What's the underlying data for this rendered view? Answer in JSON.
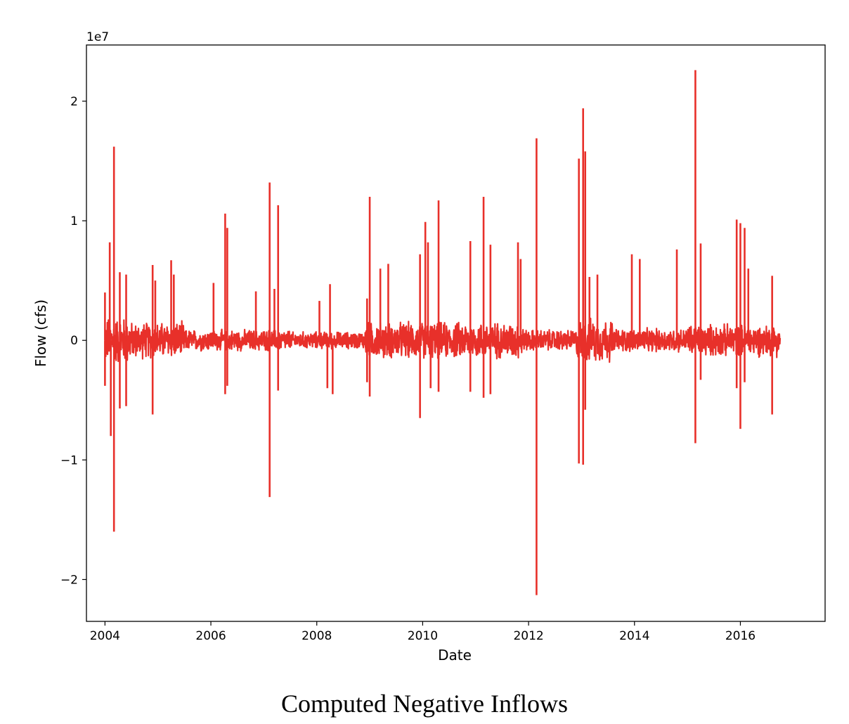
{
  "caption": "Computed Negative Inflows",
  "chart_data": {
    "type": "line",
    "xlabel": "Date",
    "ylabel": "Flow (cfs)",
    "y_scale_label": "1e7",
    "x_ticks": [
      "2004",
      "2006",
      "2008",
      "2010",
      "2012",
      "2014",
      "2016"
    ],
    "x_tick_values": [
      2004,
      2006,
      2008,
      2010,
      2012,
      2014,
      2016
    ],
    "y_ticks": [
      "2",
      "1",
      "0",
      "−1",
      "−2"
    ],
    "y_tick_values": [
      2,
      1,
      0,
      -1,
      -2
    ],
    "xlim": [
      2003.65,
      2017.6
    ],
    "ylim": [
      -2.35,
      2.47
    ],
    "x_range_data": [
      2004.0,
      2016.75
    ],
    "line_color": "#e8302a",
    "grid": false,
    "legend": "none",
    "series": [
      {
        "spikes": [
          {
            "x": 2004.0,
            "y": 0.4
          },
          {
            "x": 2004.0,
            "y": -0.38
          },
          {
            "x": 2004.09,
            "y": 0.82
          },
          {
            "x": 2004.11,
            "y": -0.8
          },
          {
            "x": 2004.17,
            "y": 1.62
          },
          {
            "x": 2004.17,
            "y": -1.6
          },
          {
            "x": 2004.28,
            "y": 0.57
          },
          {
            "x": 2004.28,
            "y": -0.57
          },
          {
            "x": 2004.4,
            "y": 0.55
          },
          {
            "x": 2004.4,
            "y": -0.55
          },
          {
            "x": 2004.9,
            "y": 0.63
          },
          {
            "x": 2004.9,
            "y": -0.62
          },
          {
            "x": 2004.95,
            "y": 0.5
          },
          {
            "x": 2005.25,
            "y": 0.67
          },
          {
            "x": 2005.3,
            "y": 0.55
          },
          {
            "x": 2006.05,
            "y": 0.48
          },
          {
            "x": 2006.27,
            "y": 1.06
          },
          {
            "x": 2006.27,
            "y": -0.45
          },
          {
            "x": 2006.31,
            "y": 0.94
          },
          {
            "x": 2006.31,
            "y": -0.38
          },
          {
            "x": 2006.85,
            "y": 0.41
          },
          {
            "x": 2007.11,
            "y": 1.32
          },
          {
            "x": 2007.11,
            "y": -1.31
          },
          {
            "x": 2007.2,
            "y": 0.43
          },
          {
            "x": 2007.27,
            "y": 1.13
          },
          {
            "x": 2007.27,
            "y": -0.42
          },
          {
            "x": 2008.05,
            "y": 0.33
          },
          {
            "x": 2008.2,
            "y": -0.4
          },
          {
            "x": 2008.25,
            "y": 0.47
          },
          {
            "x": 2008.3,
            "y": -0.45
          },
          {
            "x": 2008.95,
            "y": 0.35
          },
          {
            "x": 2008.95,
            "y": -0.35
          },
          {
            "x": 2009.0,
            "y": 1.2
          },
          {
            "x": 2009.0,
            "y": -0.47
          },
          {
            "x": 2009.2,
            "y": 0.6
          },
          {
            "x": 2009.35,
            "y": 0.64
          },
          {
            "x": 2009.95,
            "y": 0.72
          },
          {
            "x": 2009.95,
            "y": -0.65
          },
          {
            "x": 2010.05,
            "y": 0.99
          },
          {
            "x": 2010.1,
            "y": 0.82
          },
          {
            "x": 2010.15,
            "y": -0.4
          },
          {
            "x": 2010.3,
            "y": 1.17
          },
          {
            "x": 2010.3,
            "y": -0.43
          },
          {
            "x": 2010.9,
            "y": 0.83
          },
          {
            "x": 2010.9,
            "y": -0.43
          },
          {
            "x": 2011.15,
            "y": 1.2
          },
          {
            "x": 2011.15,
            "y": -0.48
          },
          {
            "x": 2011.28,
            "y": 0.8
          },
          {
            "x": 2011.28,
            "y": -0.45
          },
          {
            "x": 2011.8,
            "y": 0.82
          },
          {
            "x": 2011.85,
            "y": 0.68
          },
          {
            "x": 2012.15,
            "y": 1.69
          },
          {
            "x": 2012.15,
            "y": -2.13
          },
          {
            "x": 2012.95,
            "y": 1.52
          },
          {
            "x": 2012.95,
            "y": -1.03
          },
          {
            "x": 2013.03,
            "y": 1.94
          },
          {
            "x": 2013.03,
            "y": -1.04
          },
          {
            "x": 2013.07,
            "y": 1.58
          },
          {
            "x": 2013.07,
            "y": -0.58
          },
          {
            "x": 2013.15,
            "y": 0.53
          },
          {
            "x": 2013.3,
            "y": 0.55
          },
          {
            "x": 2013.95,
            "y": 0.72
          },
          {
            "x": 2014.1,
            "y": 0.68
          },
          {
            "x": 2014.8,
            "y": 0.76
          },
          {
            "x": 2015.15,
            "y": 2.26
          },
          {
            "x": 2015.15,
            "y": -0.86
          },
          {
            "x": 2015.25,
            "y": 0.81
          },
          {
            "x": 2015.25,
            "y": -0.33
          },
          {
            "x": 2015.93,
            "y": 1.01
          },
          {
            "x": 2015.93,
            "y": -0.4
          },
          {
            "x": 2016.0,
            "y": 0.98
          },
          {
            "x": 2016.0,
            "y": -0.74
          },
          {
            "x": 2016.08,
            "y": 0.94
          },
          {
            "x": 2016.08,
            "y": -0.35
          },
          {
            "x": 2016.15,
            "y": 0.6
          },
          {
            "x": 2016.6,
            "y": 0.54
          },
          {
            "x": 2016.6,
            "y": -0.62
          }
        ]
      }
    ]
  }
}
